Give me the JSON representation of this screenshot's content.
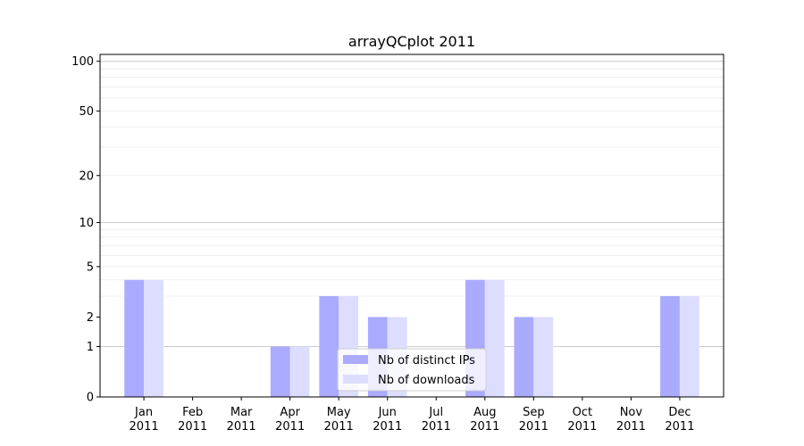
{
  "chart_data": {
    "type": "bar",
    "title": "arrayQCplot 2011",
    "xlabel": "",
    "ylabel": "",
    "categories": [
      "Jan 2011",
      "Feb 2011",
      "Mar 2011",
      "Apr 2011",
      "May 2011",
      "Jun 2011",
      "Jul 2011",
      "Aug 2011",
      "Sep 2011",
      "Oct 2011",
      "Nov 2011",
      "Dec 2011"
    ],
    "category_months": [
      "Jan",
      "Feb",
      "Mar",
      "Apr",
      "May",
      "Jun",
      "Jul",
      "Aug",
      "Sep",
      "Oct",
      "Nov",
      "Dec"
    ],
    "category_years": [
      "2011",
      "2011",
      "2011",
      "2011",
      "2011",
      "2011",
      "2011",
      "2011",
      "2011",
      "2011",
      "2011",
      "2011"
    ],
    "series": [
      {
        "name": "Nb of distinct IPs",
        "color": "#aaaaff",
        "values": [
          4,
          0,
          0,
          1,
          3,
          2,
          0,
          4,
          2,
          0,
          0,
          3
        ]
      },
      {
        "name": "Nb of downloads",
        "color": "#ddddff",
        "values": [
          4,
          0,
          0,
          1,
          3,
          2,
          0,
          4,
          2,
          0,
          0,
          3
        ]
      }
    ],
    "yscale": "log(1+y)",
    "ylim": [
      0,
      110
    ],
    "yticks": [
      0,
      1,
      2,
      5,
      10,
      20,
      50,
      100
    ],
    "ytick_labels": [
      "0",
      "1",
      "2",
      "5",
      "10",
      "20",
      "50",
      "100"
    ],
    "grid": true,
    "legend": "bottom-center"
  }
}
